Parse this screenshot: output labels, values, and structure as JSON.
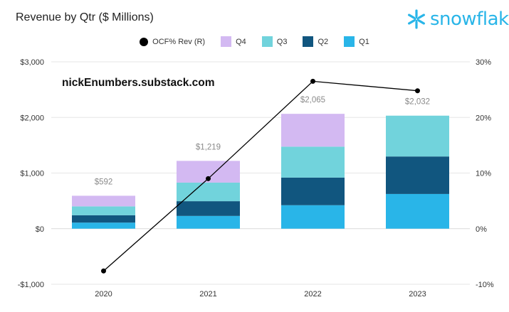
{
  "chart_data": {
    "type": "bar",
    "stacked": true,
    "title": "Revenue by Qtr ($ Millions)",
    "categories": [
      "2020",
      "2021",
      "2022",
      "2023"
    ],
    "series": [
      {
        "name": "Q1",
        "color": "#29b5e8",
        "values": [
          109,
          229,
          422,
          624
        ]
      },
      {
        "name": "Q2",
        "color": "#11567f",
        "values": [
          133,
          265,
          497,
          674
        ]
      },
      {
        "name": "Q3",
        "color": "#71d3dc",
        "values": [
          159,
          334,
          556,
          734
        ]
      },
      {
        "name": "Q4",
        "color": "#d3b9f2",
        "values": [
          191,
          391,
          590,
          0
        ]
      }
    ],
    "totals": [
      "$592",
      "$1,219",
      "$2,065",
      "$2,032"
    ],
    "total_values": [
      592,
      1219,
      2065,
      2032
    ],
    "line_series": {
      "name": "OCF% Rev (R)",
      "color": "#000000",
      "values": [
        -7.6,
        9.0,
        26.5,
        24.8
      ]
    },
    "y_left": {
      "ylim": [
        -1000,
        3000
      ],
      "ticks": [
        -1000,
        0,
        1000,
        2000,
        3000
      ],
      "tick_labels": [
        "-$1,000",
        "$0",
        "$1,000",
        "$2,000",
        "$3,000"
      ]
    },
    "y_right": {
      "ylim": [
        -10,
        30
      ],
      "ticks": [
        -10,
        0,
        10,
        20,
        30
      ],
      "tick_labels": [
        "-10%",
        "0%",
        "10%",
        "20%",
        "30%"
      ]
    },
    "legend_order": [
      "OCF% Rev (R)",
      "Q4",
      "Q3",
      "Q2",
      "Q1"
    ],
    "legend_position": "top",
    "grid": "horizontal",
    "annotation": "nickEnumbers.substack.com"
  },
  "logo": {
    "text": "snowflake",
    "icon": "snowflake-icon",
    "color": "#29b5e8"
  }
}
